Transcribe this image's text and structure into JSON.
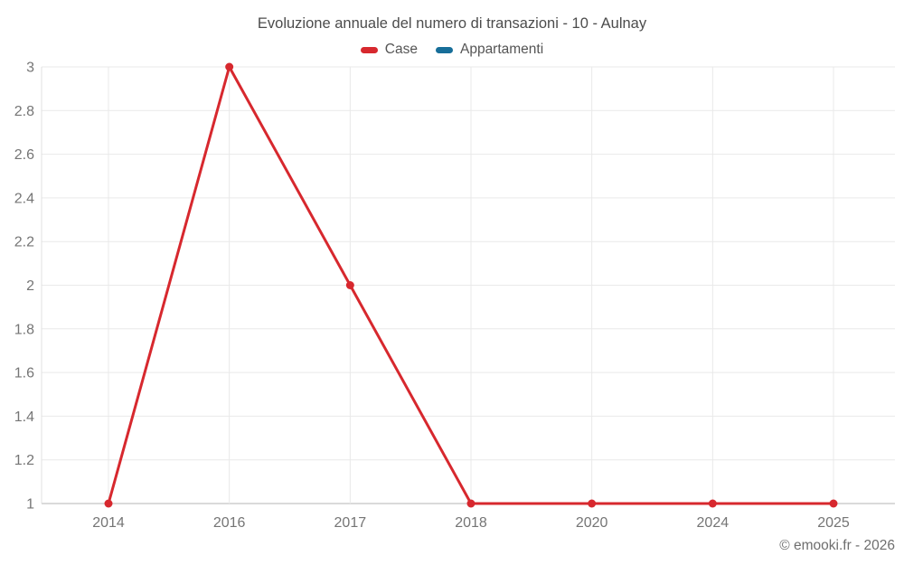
{
  "header": {
    "title": "Evoluzione annuale del numero di transazioni - 10 - Aulnay"
  },
  "chart_data": {
    "type": "line",
    "title": "Evoluzione annuale del numero di transazioni - 10 - Aulnay",
    "categories": [
      "2014",
      "2016",
      "2017",
      "2018",
      "2020",
      "2024",
      "2025"
    ],
    "series": [
      {
        "name": "Case",
        "color": "#d7282e",
        "values": [
          1,
          3,
          2,
          1,
          1,
          1,
          1
        ]
      },
      {
        "name": "Appartamenti",
        "color": "#176e99",
        "values": []
      }
    ],
    "xlabel": "",
    "ylabel": "",
    "ylim": [
      1,
      3
    ],
    "ytick_step": 0.2,
    "grid": true,
    "legend_position": "top",
    "colors": {
      "gridline": "#e9e9e9",
      "baseline": "#b5b5b5",
      "y_axis_line": "#e0e0e0",
      "tick_label": "#757575"
    }
  },
  "footer": {
    "credit": "© emooki.fr - 2026"
  }
}
